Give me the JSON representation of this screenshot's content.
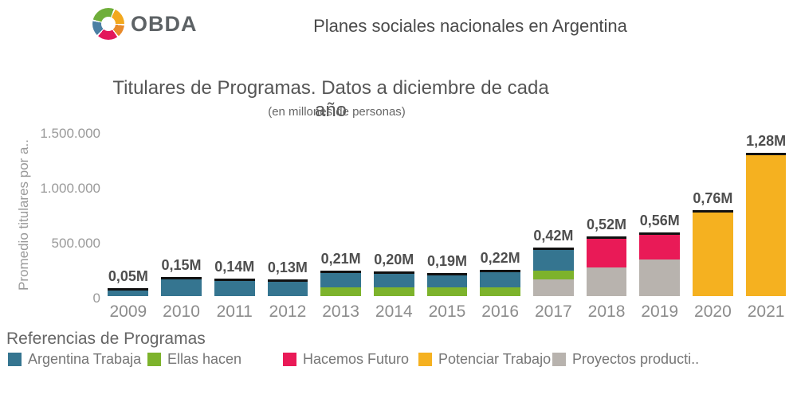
{
  "header": {
    "logo_text": "OBDA",
    "title": "Planes sociales nacionales en Argentina"
  },
  "chart": {
    "title": "Titulares de Programas. Datos a diciembre de cada año",
    "subtitle": "(en millones de personas)",
    "y_axis_label": "Promedio titulares por a.."
  },
  "chart_data": {
    "type": "bar",
    "stacked": true,
    "title": "Titulares de Programas. Datos a diciembre de cada año",
    "subtitle": "(en millones de personas)",
    "ylabel": "Promedio titulares por a..",
    "unit_millions": true,
    "categories": [
      "2009",
      "2010",
      "2011",
      "2012",
      "2013",
      "2014",
      "2015",
      "2016",
      "2017",
      "2018",
      "2019",
      "2020",
      "2021"
    ],
    "series": [
      {
        "name": "Proyectos productivos",
        "color": "#b8b3ae",
        "values": [
          0,
          0,
          0,
          0,
          0,
          0,
          0,
          0,
          0.15,
          0.26,
          0.33,
          0,
          0
        ]
      },
      {
        "name": "Ellas hacen",
        "color": "#7db32c",
        "values": [
          0,
          0,
          0,
          0,
          0.08,
          0.08,
          0.08,
          0.08,
          0.08,
          0,
          0,
          0,
          0
        ]
      },
      {
        "name": "Hacemos Futuro",
        "color": "#e91a57",
        "values": [
          0,
          0,
          0,
          0,
          0,
          0,
          0,
          0,
          0,
          0.26,
          0.23,
          0,
          0
        ]
      },
      {
        "name": "Argentina Trabaja",
        "color": "#357590",
        "values": [
          0.05,
          0.15,
          0.14,
          0.13,
          0.13,
          0.12,
          0.11,
          0.14,
          0.19,
          0,
          0,
          0,
          0
        ]
      },
      {
        "name": "Potenciar Trabajo",
        "color": "#f5b120",
        "values": [
          0,
          0,
          0,
          0,
          0,
          0,
          0,
          0,
          0,
          0,
          0,
          0.76,
          1.28
        ]
      }
    ],
    "total_labels": [
      "0,05M",
      "0,15M",
      "0,14M",
      "0,13M",
      "0,21M",
      "0,20M",
      "0,19M",
      "0,22M",
      "0,42M",
      "0,52M",
      "0,56M",
      "0,76M",
      "1,28M"
    ],
    "totals_millions": [
      0.05,
      0.15,
      0.14,
      0.13,
      0.21,
      0.2,
      0.19,
      0.22,
      0.42,
      0.52,
      0.56,
      0.76,
      1.28
    ],
    "y_ticks": [
      {
        "label": "0",
        "value": 0
      },
      {
        "label": "500.000",
        "value": 0.5
      },
      {
        "label": "1.000.000",
        "value": 1.0
      },
      {
        "label": "1.500.000",
        "value": 1.5
      }
    ],
    "ylim_millions": [
      0,
      1.55
    ],
    "grid": false,
    "bar_cap_color": "#111111",
    "legend_position": "bottom"
  },
  "legend": {
    "title": "Referencias de Programas",
    "items": [
      {
        "label": "Argentina Trabaja",
        "color": "#357590"
      },
      {
        "label": "Ellas hacen",
        "color": "#7db32c"
      },
      {
        "label": "Hacemos Futuro",
        "color": "#e91a57"
      },
      {
        "label": "Potenciar Trabajo",
        "color": "#f5b120"
      },
      {
        "label": "Proyectos producti..",
        "color": "#b8b3ae"
      }
    ]
  }
}
